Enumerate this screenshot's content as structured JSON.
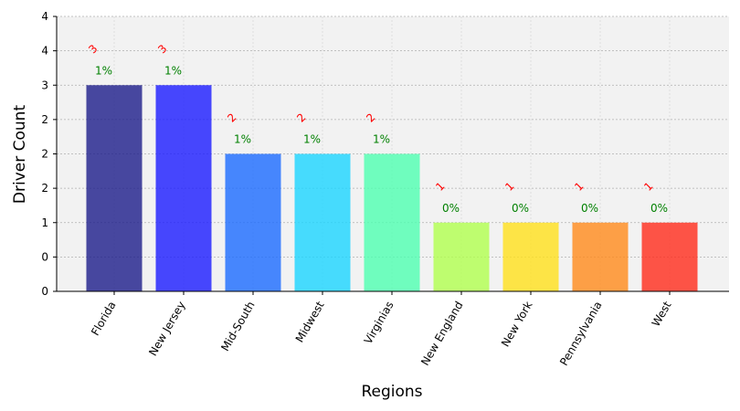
{
  "chart_data": {
    "type": "bar",
    "xlabel": "Regions",
    "ylabel": "Driver Count",
    "ylim": [
      0,
      4
    ],
    "y_tick_labels": [
      "0",
      "0",
      "1",
      "2",
      "2",
      "2",
      "3",
      "4",
      "4"
    ],
    "grid": true,
    "categories": [
      "Florida",
      "New Jersey",
      "Mid-South",
      "Midwest",
      "Virginias",
      "New England",
      "New York",
      "Pennsylvania",
      "West"
    ],
    "values": [
      3,
      3,
      2,
      2,
      2,
      1,
      1,
      1,
      1
    ],
    "count_labels": [
      "3",
      "3",
      "2",
      "2",
      "2",
      "1",
      "1",
      "1",
      "1"
    ],
    "percent_labels": [
      "1%",
      "1%",
      "1%",
      "1%",
      "1%",
      "0%",
      "0%",
      "0%",
      "0%"
    ],
    "colors": [
      "#1b1b8a",
      "#1a1aff",
      "#1a6aff",
      "#1ad4ff",
      "#4dffb0",
      "#b0ff4d",
      "#ffe01a",
      "#ff8a1a",
      "#ff2a1a"
    ],
    "bar_opacity": 0.8,
    "count_label_color": "#ff0000",
    "percent_label_color": "#008000",
    "plot_background": "#f2f2f2"
  }
}
